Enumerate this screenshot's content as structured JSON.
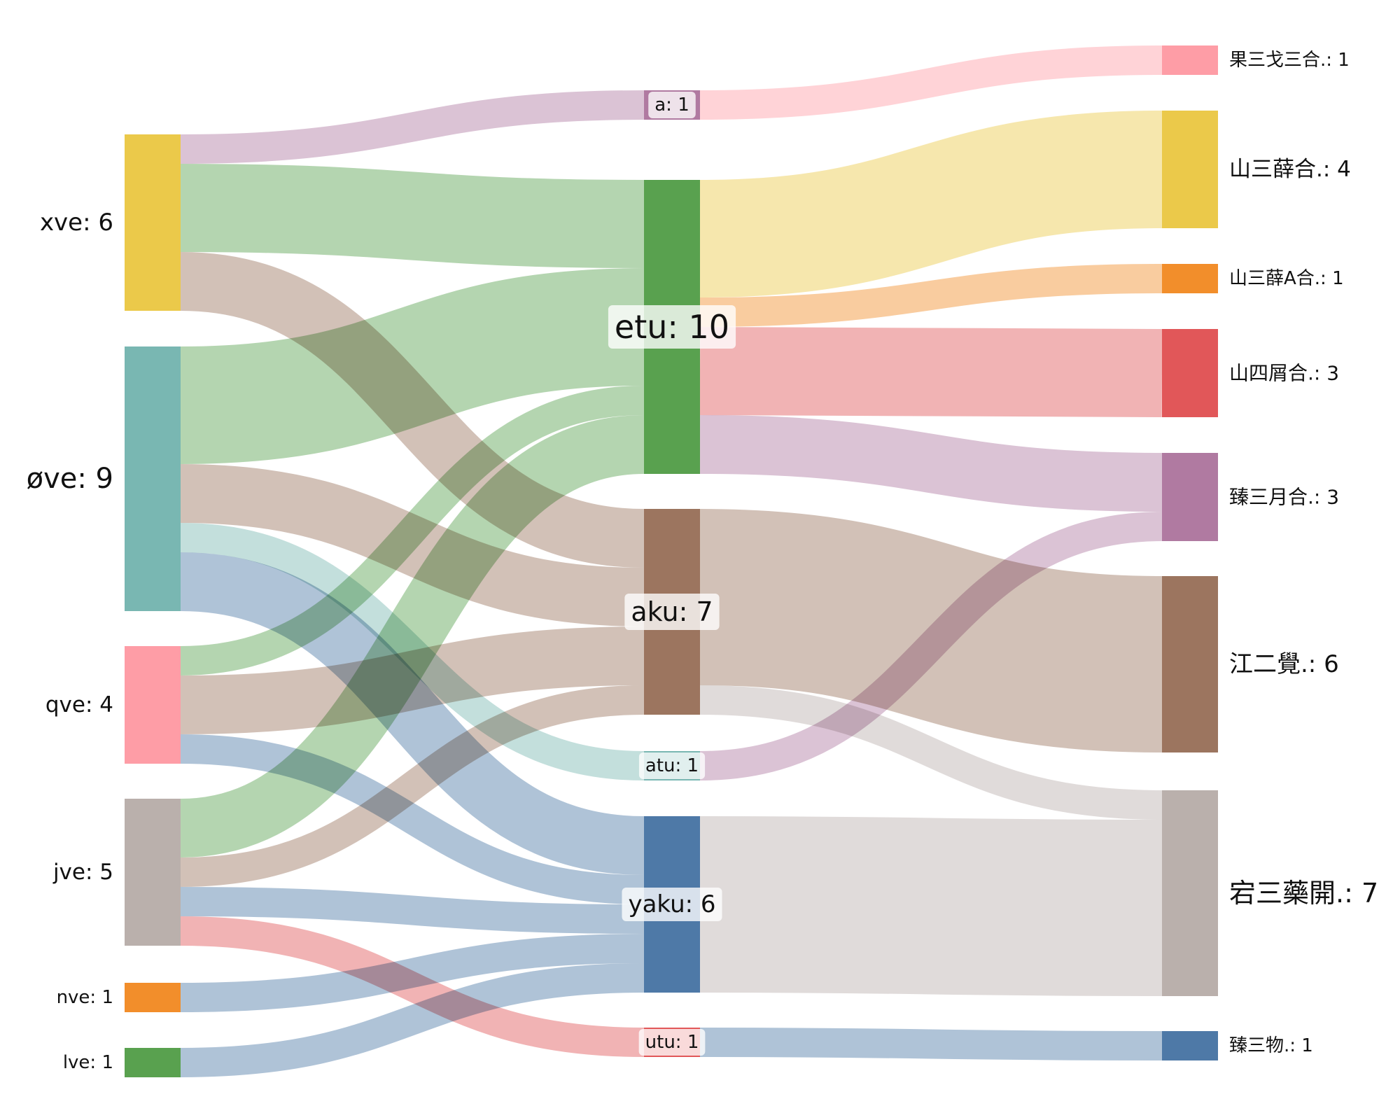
{
  "chart_data": {
    "type": "sankey",
    "nodes": [
      {
        "id": "xve",
        "label": "xve: 6",
        "value": 6,
        "column": 0,
        "color": "#EBC94A"
      },
      {
        "id": "ove",
        "label": "øve: 9",
        "value": 9,
        "column": 0,
        "color": "#79B7B2"
      },
      {
        "id": "qve",
        "label": "qve: 4",
        "value": 4,
        "column": 0,
        "color": "#FE9DA6"
      },
      {
        "id": "jve",
        "label": "jve: 5",
        "value": 5,
        "column": 0,
        "color": "#BAB0AC"
      },
      {
        "id": "nve",
        "label": "nve: 1",
        "value": 1,
        "column": 0,
        "color": "#F28E2B"
      },
      {
        "id": "lve",
        "label": "lve: 1",
        "value": 1,
        "column": 0,
        "color": "#59A14F"
      },
      {
        "id": "a",
        "label": "a: 1",
        "value": 1,
        "column": 1,
        "color": "#B07AA1"
      },
      {
        "id": "etu",
        "label": "etu: 10",
        "value": 10,
        "column": 1,
        "color": "#59A14F"
      },
      {
        "id": "aku",
        "label": "aku: 7",
        "value": 7,
        "column": 1,
        "color": "#9C755F"
      },
      {
        "id": "atu",
        "label": "atu: 1",
        "value": 1,
        "column": 1,
        "color": "#79B7B2"
      },
      {
        "id": "yaku",
        "label": "yaku: 6",
        "value": 6,
        "column": 1,
        "color": "#4E79A7"
      },
      {
        "id": "utu",
        "label": "utu: 1",
        "value": 1,
        "column": 1,
        "color": "#E15759"
      },
      {
        "id": "r1",
        "label": "果三戈三合.: 1",
        "value": 1,
        "column": 2,
        "color": "#FE9DA6"
      },
      {
        "id": "r2",
        "label": "山三薛合.: 4",
        "value": 4,
        "column": 2,
        "color": "#EBC94A"
      },
      {
        "id": "r3",
        "label": "山三薛A合.: 1",
        "value": 1,
        "column": 2,
        "color": "#F28E2B"
      },
      {
        "id": "r4",
        "label": "山四屑合.: 3",
        "value": 3,
        "column": 2,
        "color": "#E15759"
      },
      {
        "id": "r5",
        "label": "臻三月合.: 3",
        "value": 3,
        "column": 2,
        "color": "#B07AA1"
      },
      {
        "id": "r6",
        "label": "江二覺.: 6",
        "value": 6,
        "column": 2,
        "color": "#9C755F"
      },
      {
        "id": "r7",
        "label": "宕三藥開.: 7",
        "value": 7,
        "column": 2,
        "color": "#BAB0AC"
      },
      {
        "id": "r8",
        "label": "臻三物.: 1",
        "value": 1,
        "column": 2,
        "color": "#4E79A7"
      }
    ],
    "links": [
      {
        "source": "xve",
        "target": "a",
        "value": 1,
        "color": "#B07AA1"
      },
      {
        "source": "xve",
        "target": "etu",
        "value": 3,
        "color": "#59A14F"
      },
      {
        "source": "xve",
        "target": "aku",
        "value": 2,
        "color": "#9C755F"
      },
      {
        "source": "ove",
        "target": "etu",
        "value": 4,
        "color": "#59A14F"
      },
      {
        "source": "ove",
        "target": "aku",
        "value": 2,
        "color": "#9C755F"
      },
      {
        "source": "ove",
        "target": "atu",
        "value": 1,
        "color": "#79B7B2"
      },
      {
        "source": "ove",
        "target": "yaku",
        "value": 2,
        "color": "#4E79A7"
      },
      {
        "source": "qve",
        "target": "etu",
        "value": 1,
        "color": "#59A14F"
      },
      {
        "source": "qve",
        "target": "aku",
        "value": 2,
        "color": "#9C755F"
      },
      {
        "source": "qve",
        "target": "yaku",
        "value": 1,
        "color": "#4E79A7"
      },
      {
        "source": "jve",
        "target": "etu",
        "value": 2,
        "color": "#59A14F"
      },
      {
        "source": "jve",
        "target": "aku",
        "value": 1,
        "color": "#9C755F"
      },
      {
        "source": "jve",
        "target": "yaku",
        "value": 1,
        "color": "#4E79A7"
      },
      {
        "source": "jve",
        "target": "utu",
        "value": 1,
        "color": "#E15759"
      },
      {
        "source": "nve",
        "target": "yaku",
        "value": 1,
        "color": "#4E79A7"
      },
      {
        "source": "lve",
        "target": "yaku",
        "value": 1,
        "color": "#4E79A7"
      },
      {
        "source": "a",
        "target": "r1",
        "value": 1,
        "color": "#FE9DA6"
      },
      {
        "source": "etu",
        "target": "r2",
        "value": 4,
        "color": "#EBC94A"
      },
      {
        "source": "etu",
        "target": "r3",
        "value": 1,
        "color": "#F28E2B"
      },
      {
        "source": "etu",
        "target": "r4",
        "value": 3,
        "color": "#E15759"
      },
      {
        "source": "etu",
        "target": "r5",
        "value": 2,
        "color": "#B07AA1"
      },
      {
        "source": "aku",
        "target": "r6",
        "value": 6,
        "color": "#9C755F"
      },
      {
        "source": "aku",
        "target": "r7",
        "value": 1,
        "color": "#BAB0AC"
      },
      {
        "source": "atu",
        "target": "r5",
        "value": 1,
        "color": "#B07AA1"
      },
      {
        "source": "yaku",
        "target": "r7",
        "value": 6,
        "color": "#BAB0AC"
      },
      {
        "source": "utu",
        "target": "r8",
        "value": 1,
        "color": "#4E79A7"
      }
    ]
  }
}
